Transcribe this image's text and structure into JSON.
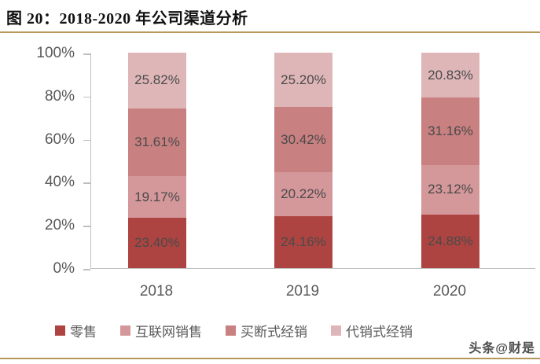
{
  "page": {
    "title": "图 20：2018-2020 年公司渠道分析",
    "watermark": "头条@财是",
    "accent_gold": "#b5985a"
  },
  "chart_data": {
    "type": "bar",
    "variant": "stacked-100-percent-column",
    "title": "图 20：2018-2020 年公司渠道分析",
    "categories": [
      "2018",
      "2019",
      "2020"
    ],
    "series": [
      {
        "name": "零售",
        "color": "#ae4441",
        "values": [
          23.4,
          24.16,
          24.88
        ],
        "labels": [
          "23.40%",
          "24.16%",
          "24.88%"
        ]
      },
      {
        "name": "互联网销售",
        "color": "#d4979a",
        "values": [
          19.17,
          20.22,
          23.12
        ],
        "labels": [
          "19.17%",
          "20.22%",
          "23.12%"
        ]
      },
      {
        "name": "买断式经销",
        "color": "#c98081",
        "values": [
          31.61,
          30.42,
          31.16
        ],
        "labels": [
          "31.61%",
          "30.42%",
          "31.16%"
        ]
      },
      {
        "name": "代销式经销",
        "color": "#dfb6b8",
        "values": [
          25.82,
          25.2,
          20.83
        ],
        "labels": [
          "25.82%",
          "25.20%",
          "20.83%"
        ]
      }
    ],
    "xlabel": "",
    "ylabel": "",
    "ylim": [
      0,
      100
    ],
    "y_ticks": [
      "100%",
      "80%",
      "60%",
      "40%",
      "20%",
      "0%"
    ],
    "grid": false,
    "legend_position": "bottom",
    "label_color": "#4a4a4a",
    "axis_color": "#bfbfbf",
    "tick_text_color": "#595959"
  }
}
